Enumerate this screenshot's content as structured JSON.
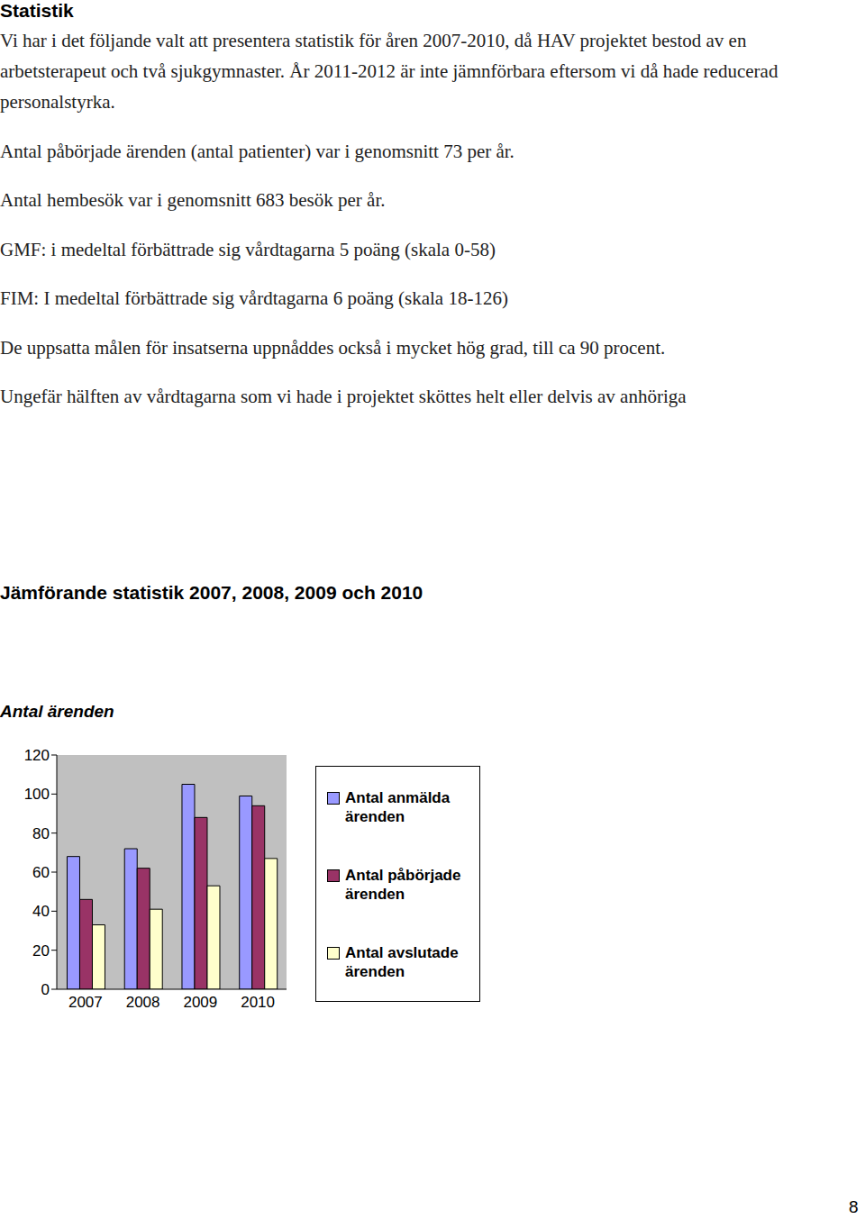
{
  "title": "Statistik",
  "paragraphs": [
    "Vi har i det följande valt att presentera statistik för åren 2007-2010, då HAV projektet bestod av en arbetsterapeut och två sjukgymnaster. År 2011-2012 är inte jämnförbara eftersom vi då hade reducerad personalstyrka.",
    "Antal påbörjade ärenden (antal patienter) var i genomsnitt 73 per år.",
    "Antal hembesök var i genomsnitt 683 besök per år.",
    "GMF: i medeltal förbättrade sig vårdtagarna 5 poäng (skala 0-58)",
    "FIM: I medeltal förbättrade sig vårdtagarna 6 poäng (skala 18-126)",
    "De uppsatta målen för insatserna uppnåddes också i mycket hög grad, till ca 90 procent.",
    "Ungefär hälften av vårdtagarna som vi hade i projektet sköttes helt eller delvis av anhöriga"
  ],
  "section_title": "Jämförande statistik 2007, 2008, 2009 och 2010",
  "page_number": "8",
  "chart_data": {
    "type": "bar",
    "title": "Antal ärenden",
    "categories": [
      "2007",
      "2008",
      "2009",
      "2010"
    ],
    "series": [
      {
        "name": "Antal anmälda ärenden",
        "color": "#9999ff",
        "values": [
          68,
          72,
          105,
          99
        ]
      },
      {
        "name": "Antal påbörjade ärenden",
        "color": "#993366",
        "values": [
          46,
          62,
          88,
          94
        ]
      },
      {
        "name": "Antal avslutade ärenden",
        "color": "#ffffcc",
        "values": [
          33,
          41,
          53,
          67
        ]
      }
    ],
    "ylim": [
      0,
      120
    ],
    "yticks": [
      0,
      20,
      40,
      60,
      80,
      100,
      120
    ],
    "legend": "right"
  }
}
